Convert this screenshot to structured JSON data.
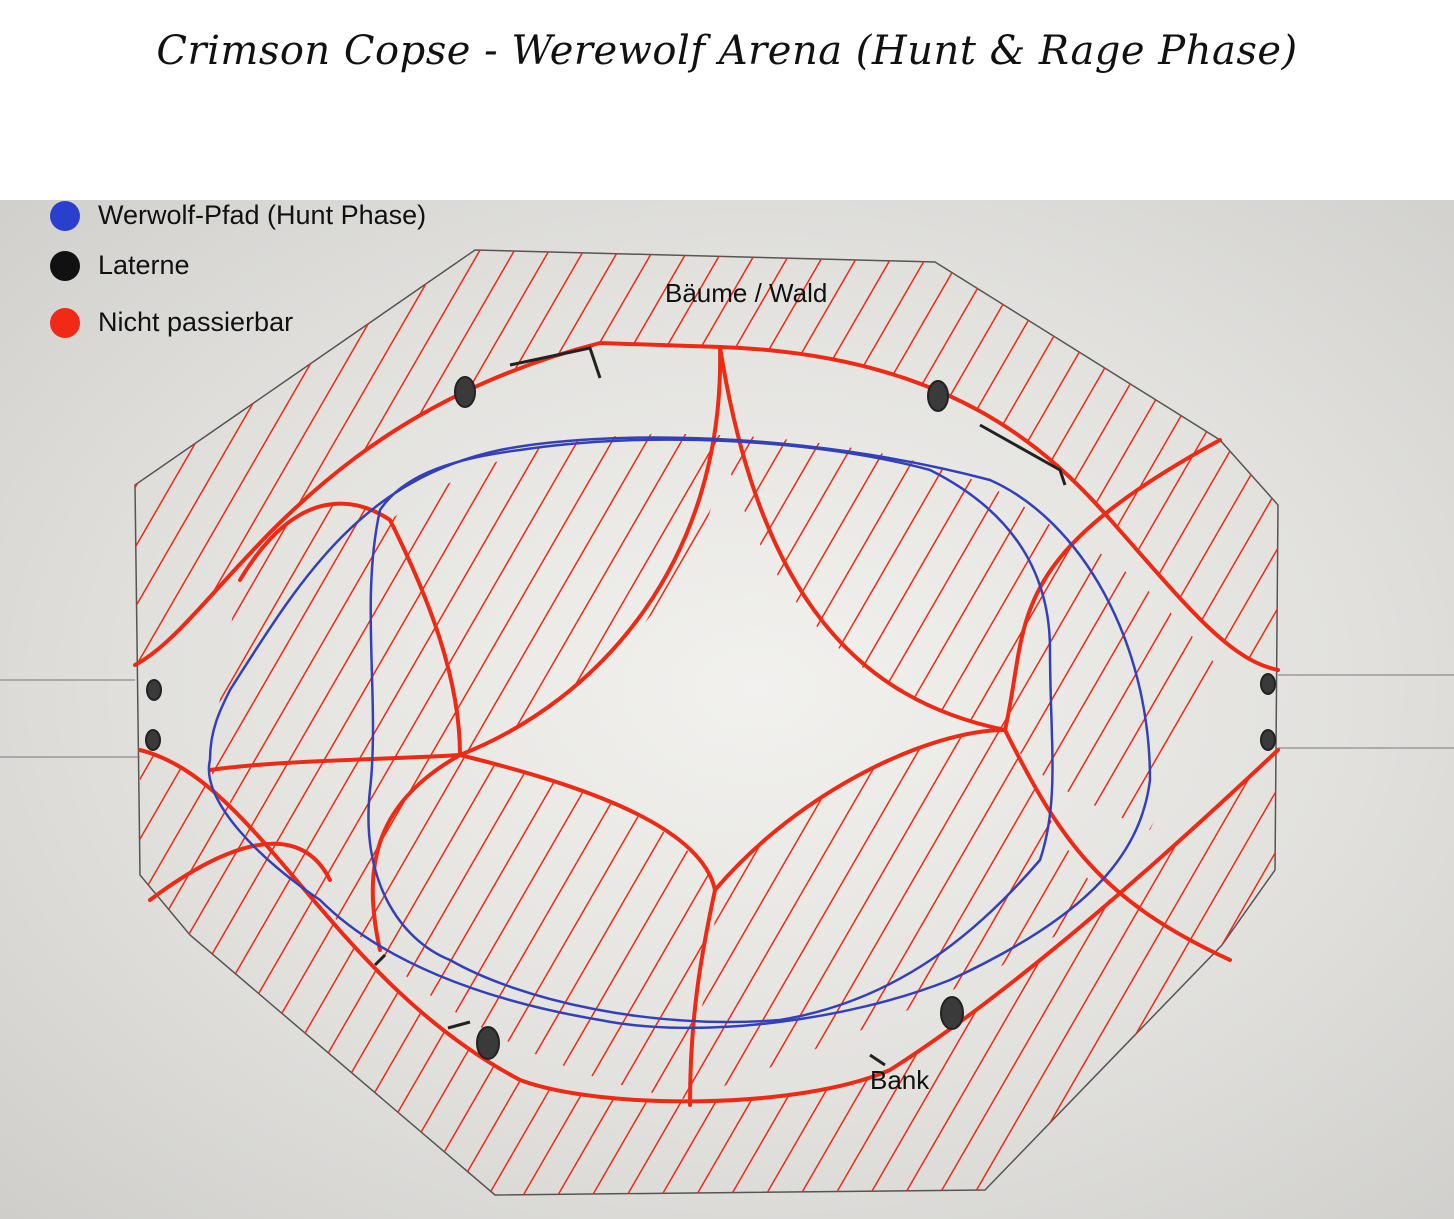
{
  "title": "Crimson Copse - Werewolf Arena (Hunt & Rage Phase)",
  "legend": [
    {
      "label": "Werwolf-Pfad (Hunt Phase)",
      "color": "#2b3fcf",
      "icon": "blue-dot-icon"
    },
    {
      "label": "Laterne",
      "color": "#111111",
      "icon": "black-dot-icon"
    },
    {
      "label": "Nicht passierbar",
      "color": "#f02a14",
      "icon": "red-dot-icon"
    }
  ],
  "labels": {
    "trees": "Bäume / Wald",
    "bench": "Bank"
  },
  "colors": {
    "path": "#3340b8",
    "impassable": "#ee2a14",
    "lantern": "#3a3a3a",
    "outline": "#555555"
  }
}
